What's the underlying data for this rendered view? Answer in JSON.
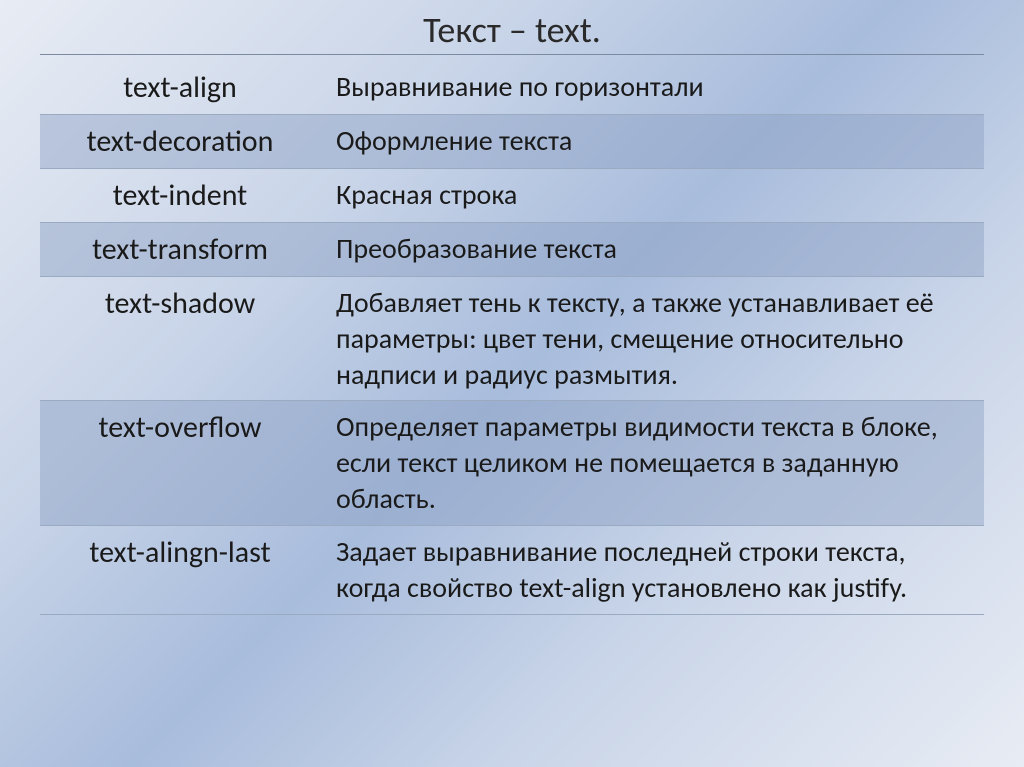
{
  "slide": {
    "title": "Текст – text.",
    "background_gradient": [
      "#e8ecf4",
      "#c8d4e8",
      "#a8bcdc"
    ],
    "title_fontsize": 36,
    "cell_left_fontsize": 30,
    "cell_right_fontsize": 28,
    "divider_color": "#9aaac0",
    "shaded_row_color": "rgba(140,160,195,0.45)",
    "rows": [
      {
        "property": "text-align",
        "description": "Выравнивание по горизонтали",
        "shaded": false
      },
      {
        "property": "text-decoration",
        "description": "Оформление текста",
        "shaded": true
      },
      {
        "property": "text-indent",
        "description": "Красная строка",
        "shaded": false
      },
      {
        "property": "text-transform",
        "description": "Преобразование текста",
        "shaded": true
      },
      {
        "property": "text-shadow",
        "description": "Добавляет тень к тексту, а также устанавливает её параметры: цвет тени, смещение относительно надписи и радиус размытия.",
        "shaded": false
      },
      {
        "property": "text-overflow",
        "description": "Определяет параметры видимости текста в блоке, если текст целиком не помещается в заданную область.",
        "shaded": true
      },
      {
        "property": "text-alingn-last",
        "description": "Задает выравнивание последней строки текста, когда свойство text-align установлено как justify.",
        "shaded": false
      }
    ]
  }
}
